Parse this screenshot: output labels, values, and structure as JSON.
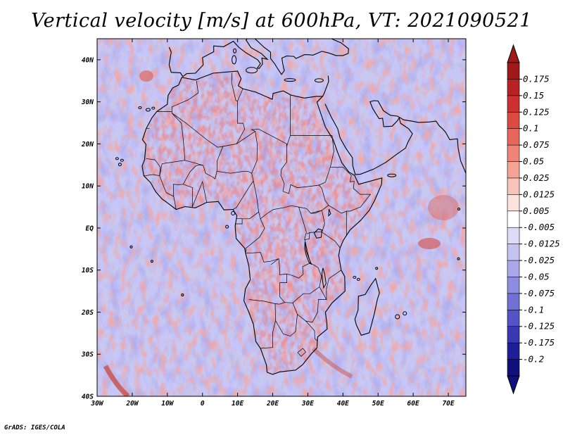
{
  "title": "Vertical velocity [m/s] at 600hPa, VT: 2021090521",
  "credit": "GrADS: IGES/COLA",
  "map": {
    "region": "Africa",
    "variable": "Vertical velocity",
    "units": "m/s",
    "level": "600hPa",
    "valid_time": "2021090521",
    "lon_range": [
      -30,
      75
    ],
    "lat_range": [
      -40,
      45
    ],
    "lat_labels": [
      "40N",
      "30N",
      "20N",
      "10N",
      "EQ",
      "10S",
      "20S",
      "30S",
      "40S"
    ],
    "lat_values": [
      40,
      30,
      20,
      10,
      0,
      -10,
      -20,
      -30,
      -40
    ],
    "lon_labels": [
      "30W",
      "20W",
      "10W",
      "0",
      "10E",
      "20E",
      "30E",
      "40E",
      "50E",
      "60E",
      "70E"
    ],
    "lon_values": [
      -30,
      -20,
      -10,
      0,
      10,
      20,
      30,
      40,
      50,
      60,
      70
    ]
  },
  "colorbar": {
    "labels": [
      "0.175",
      "0.15",
      "0.125",
      "0.1",
      "0.075",
      "0.05",
      "0.025",
      "0.0125",
      "0.005",
      "-0.005",
      "-0.0125",
      "-0.025",
      "-0.05",
      "-0.075",
      "-0.1",
      "-0.125",
      "-0.175",
      "-0.2"
    ],
    "colors": [
      "#a01818",
      "#b82222",
      "#cc3030",
      "#dc4a42",
      "#e8655b",
      "#ef8478",
      "#f5a395",
      "#f9c4b8",
      "#fce3dc",
      "#ffffff",
      "#dcdcf8",
      "#c4c4f2",
      "#a8a8ea",
      "#8c8ce2",
      "#7070d6",
      "#5454c8",
      "#3838b4",
      "#1e1e9a",
      "#10107c"
    ],
    "top_arrow_color": "#a01818",
    "bottom_arrow_color": "#10107c"
  }
}
